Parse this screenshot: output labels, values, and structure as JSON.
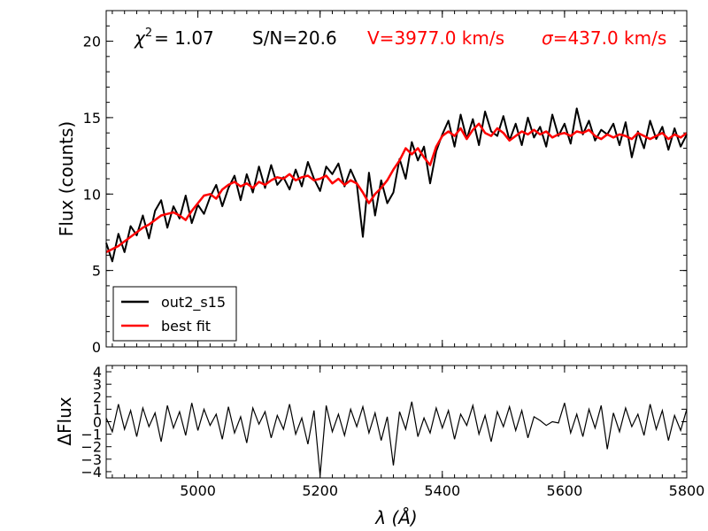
{
  "chart_data": [
    {
      "panel": "spectrum",
      "type": "line",
      "xlim": [
        4850,
        5800
      ],
      "ylim": [
        0,
        22
      ],
      "yticks": [
        0,
        5,
        10,
        15,
        20
      ],
      "ylabel": "Flux (counts)",
      "annotations": {
        "chi2_symbol": "χ",
        "chi2_exp": "2",
        "chi2_value": "= 1.07",
        "sn": "S/N=20.6",
        "velocity": "V=3977.0 km/s",
        "sigma_symbol": "σ",
        "sigma_value": "=437.0 km/s"
      },
      "series": [
        {
          "name": "out2_s15",
          "color": "#000000",
          "x": [
            4850,
            4860,
            4870,
            4880,
            4890,
            4900,
            4910,
            4920,
            4930,
            4940,
            4950,
            4960,
            4970,
            4980,
            4990,
            5000,
            5010,
            5020,
            5030,
            5040,
            5050,
            5060,
            5070,
            5080,
            5090,
            5100,
            5110,
            5120,
            5130,
            5140,
            5150,
            5160,
            5170,
            5180,
            5190,
            5200,
            5210,
            5220,
            5230,
            5240,
            5250,
            5260,
            5270,
            5280,
            5290,
            5300,
            5310,
            5320,
            5330,
            5340,
            5350,
            5360,
            5370,
            5380,
            5390,
            5400,
            5410,
            5420,
            5430,
            5440,
            5450,
            5460,
            5470,
            5480,
            5490,
            5500,
            5510,
            5520,
            5530,
            5540,
            5550,
            5560,
            5570,
            5580,
            5590,
            5600,
            5610,
            5620,
            5630,
            5640,
            5650,
            5660,
            5670,
            5680,
            5690,
            5700,
            5710,
            5720,
            5730,
            5740,
            5750,
            5760,
            5770,
            5780,
            5790,
            5800
          ],
          "values": [
            6.8,
            5.6,
            7.4,
            6.2,
            7.9,
            7.3,
            8.6,
            7.1,
            8.9,
            9.6,
            7.8,
            9.2,
            8.4,
            9.9,
            8.1,
            9.3,
            8.7,
            9.8,
            10.6,
            9.2,
            10.4,
            11.2,
            9.6,
            11.3,
            10.1,
            11.8,
            10.4,
            11.9,
            10.6,
            11.1,
            10.3,
            11.6,
            10.5,
            12.1,
            11.0,
            10.2,
            11.8,
            11.3,
            12.0,
            10.5,
            11.6,
            10.7,
            7.2,
            11.4,
            8.6,
            10.9,
            9.4,
            10.1,
            12.3,
            11.0,
            13.4,
            12.2,
            13.1,
            10.7,
            12.8,
            13.9,
            14.8,
            13.1,
            15.2,
            13.6,
            14.9,
            13.2,
            15.4,
            14.1,
            13.8,
            15.1,
            13.5,
            14.6,
            13.2,
            15.0,
            13.7,
            14.4,
            13.1,
            15.2,
            13.8,
            14.6,
            13.3,
            15.6,
            13.9,
            14.8,
            13.5,
            14.2,
            13.9,
            14.6,
            13.2,
            14.7,
            12.4,
            14.1,
            13.0,
            14.8,
            13.6,
            14.4,
            12.9,
            14.3,
            13.1,
            13.9
          ]
        },
        {
          "name": "best fit",
          "color": "#ff0000",
          "x": [
            4850,
            4860,
            4870,
            4880,
            4890,
            4900,
            4910,
            4920,
            4930,
            4940,
            4950,
            4960,
            4970,
            4980,
            4990,
            5000,
            5010,
            5020,
            5030,
            5040,
            5050,
            5060,
            5070,
            5080,
            5090,
            5100,
            5110,
            5120,
            5130,
            5140,
            5150,
            5160,
            5170,
            5180,
            5190,
            5200,
            5210,
            5220,
            5230,
            5240,
            5250,
            5260,
            5270,
            5280,
            5290,
            5300,
            5310,
            5320,
            5330,
            5340,
            5350,
            5360,
            5370,
            5380,
            5390,
            5400,
            5410,
            5420,
            5430,
            5440,
            5450,
            5460,
            5470,
            5480,
            5490,
            5500,
            5510,
            5520,
            5530,
            5540,
            5550,
            5560,
            5570,
            5580,
            5590,
            5600,
            5610,
            5620,
            5630,
            5640,
            5650,
            5660,
            5670,
            5680,
            5690,
            5700,
            5710,
            5720,
            5730,
            5740,
            5750,
            5760,
            5770,
            5780,
            5790,
            5800
          ],
          "values": [
            6.2,
            6.4,
            6.6,
            6.9,
            7.2,
            7.5,
            7.8,
            8.0,
            8.3,
            8.6,
            8.7,
            8.8,
            8.6,
            8.3,
            8.9,
            9.4,
            9.9,
            10.0,
            9.7,
            10.3,
            10.6,
            10.8,
            10.5,
            10.7,
            10.4,
            10.8,
            10.6,
            10.9,
            11.1,
            11.0,
            11.3,
            10.9,
            11.1,
            11.2,
            10.9,
            11.0,
            11.2,
            10.7,
            11.0,
            10.6,
            10.9,
            10.7,
            10.1,
            9.4,
            10.0,
            10.4,
            10.9,
            11.6,
            12.2,
            13.0,
            12.6,
            13.0,
            12.4,
            11.9,
            13.1,
            13.8,
            14.1,
            13.8,
            14.3,
            13.6,
            14.2,
            14.6,
            14.0,
            13.8,
            14.3,
            14.0,
            13.5,
            13.8,
            14.1,
            13.9,
            14.2,
            13.9,
            14.1,
            13.7,
            13.9,
            14.0,
            13.8,
            14.1,
            14.0,
            14.2,
            13.8,
            13.6,
            13.9,
            13.7,
            13.9,
            13.8,
            13.6,
            14.0,
            13.8,
            13.6,
            13.8,
            14.0,
            13.6,
            13.9,
            13.7,
            14.0
          ]
        }
      ],
      "legend": {
        "placement": "lower-left",
        "entries": [
          "out2_s15",
          "best fit"
        ]
      }
    },
    {
      "panel": "residuals",
      "type": "line",
      "xlim": [
        4850,
        5800
      ],
      "ylim": [
        -4.5,
        4.5
      ],
      "yticks": [
        -4,
        -3,
        -2,
        -1,
        0,
        1,
        2,
        3,
        4
      ],
      "ytick_labels": [
        "−4",
        "−3",
        "−2",
        "−1",
        "0",
        "1",
        "2",
        "3",
        "4"
      ],
      "xticks": [
        5000,
        5200,
        5400,
        5600,
        5800
      ],
      "xlabel": "λ (Å)",
      "ylabel": "ΔFlux",
      "series": [
        {
          "name": "residual",
          "color": "#000000",
          "x": [
            4850,
            4860,
            4870,
            4880,
            4890,
            4900,
            4910,
            4920,
            4930,
            4940,
            4950,
            4960,
            4970,
            4980,
            4990,
            5000,
            5010,
            5020,
            5030,
            5040,
            5050,
            5060,
            5070,
            5080,
            5090,
            5100,
            5110,
            5120,
            5130,
            5140,
            5150,
            5160,
            5170,
            5180,
            5190,
            5200,
            5210,
            5220,
            5230,
            5240,
            5250,
            5260,
            5270,
            5280,
            5290,
            5300,
            5310,
            5320,
            5330,
            5340,
            5350,
            5360,
            5370,
            5380,
            5390,
            5400,
            5410,
            5420,
            5430,
            5440,
            5450,
            5460,
            5470,
            5480,
            5490,
            5500,
            5510,
            5520,
            5530,
            5540,
            5550,
            5560,
            5570,
            5580,
            5590,
            5600,
            5610,
            5620,
            5630,
            5640,
            5650,
            5660,
            5670,
            5680,
            5690,
            5700,
            5710,
            5720,
            5730,
            5740,
            5750,
            5760,
            5770,
            5780,
            5790,
            5800
          ],
          "values": [
            0.3,
            -0.8,
            1.4,
            -0.6,
            0.9,
            -1.2,
            1.1,
            -0.4,
            0.7,
            -1.6,
            1.3,
            -0.5,
            0.8,
            -1.1,
            1.5,
            -0.7,
            1.0,
            -0.3,
            0.6,
            -1.4,
            1.2,
            -0.9,
            0.4,
            -1.7,
            1.1,
            -0.2,
            0.8,
            -1.3,
            0.5,
            -0.6,
            1.4,
            -1.0,
            0.3,
            -1.8,
            0.9,
            -4.3,
            1.3,
            -0.8,
            0.6,
            -1.1,
            1.0,
            -0.4,
            1.2,
            -0.9,
            0.7,
            -1.5,
            0.4,
            -3.5,
            0.8,
            -0.6,
            1.6,
            -1.2,
            0.3,
            -0.9,
            1.1,
            -0.5,
            0.9,
            -1.4,
            0.6,
            -0.3,
            1.3,
            -1.0,
            0.5,
            -1.6,
            0.8,
            -0.4,
            1.2,
            -0.7,
            0.9,
            -1.3,
            0.4,
            0.1,
            -0.3,
            0.0,
            -0.1,
            1.5,
            -0.9,
            0.6,
            -1.2,
            1.0,
            -0.5,
            1.3,
            -2.2,
            0.7,
            -0.8,
            1.1,
            -0.4,
            0.6,
            -1.1,
            1.4,
            -0.6,
            0.9,
            -1.5,
            0.5,
            -0.7,
            1.0
          ]
        }
      ]
    }
  ]
}
